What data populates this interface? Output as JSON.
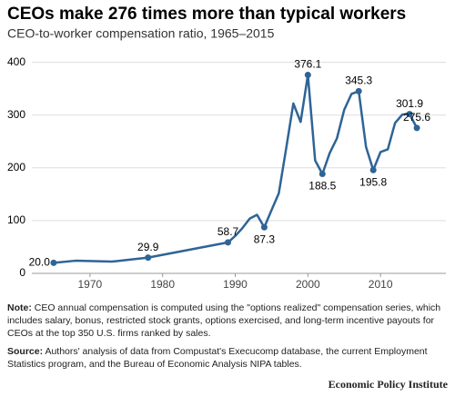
{
  "chart_data": {
    "type": "line",
    "title": "CEOs make 276 times more than typical workers",
    "subtitle": "CEO-to-worker compensation ratio, 1965–2015",
    "x": [
      1965,
      1968,
      1973,
      1978,
      1989,
      1990,
      1991,
      1992,
      1993,
      1994,
      1995,
      1996,
      1997,
      1998,
      1999,
      2000,
      2001,
      2002,
      2003,
      2004,
      2005,
      2006,
      2007,
      2008,
      2009,
      2010,
      2011,
      2012,
      2013,
      2014,
      2015
    ],
    "series": [
      {
        "color": "#2e6496",
        "values": [
          20.0,
          24,
          22.3,
          29.9,
          58.7,
          71,
          86,
          104,
          111,
          87.3,
          120,
          152,
          236,
          322,
          287,
          376.1,
          214,
          188.5,
          228,
          256,
          310,
          340,
          345.3,
          240,
          195.8,
          230,
          235,
          285,
          301,
          301.9,
          275.6
        ],
        "value_labels": [
          "20.0",
          null,
          null,
          "29.9",
          "58.7",
          null,
          null,
          null,
          null,
          "87.3",
          null,
          null,
          null,
          null,
          null,
          "376.1",
          null,
          "188.5",
          null,
          null,
          null,
          null,
          "345.3",
          null,
          "195.8",
          null,
          null,
          null,
          null,
          "301.9",
          "275.6"
        ]
      }
    ],
    "xlim": [
      1962,
      2019
    ],
    "xticks": [
      1970,
      1980,
      1990,
      2000,
      2010
    ],
    "ylim": [
      0,
      420
    ],
    "yticks": [
      0,
      100,
      200,
      300,
      400
    ],
    "grid": true
  },
  "notes": [
    {
      "label": "Note:",
      "text": "CEO annual compensation is computed using the \"options realized\" compensation series, which includes salary, bonus, restricted stock grants, options exercised, and long-term incentive payouts for CEOs at the top 350 U.S. firms ranked by sales."
    },
    {
      "label": "Source:",
      "text": "Authors' analysis of data from Compustat's Execucomp database, the current Employment Statistics program, and the Bureau of Economic Analysis NIPA tables."
    }
  ],
  "footer": "Economic Policy Institute"
}
